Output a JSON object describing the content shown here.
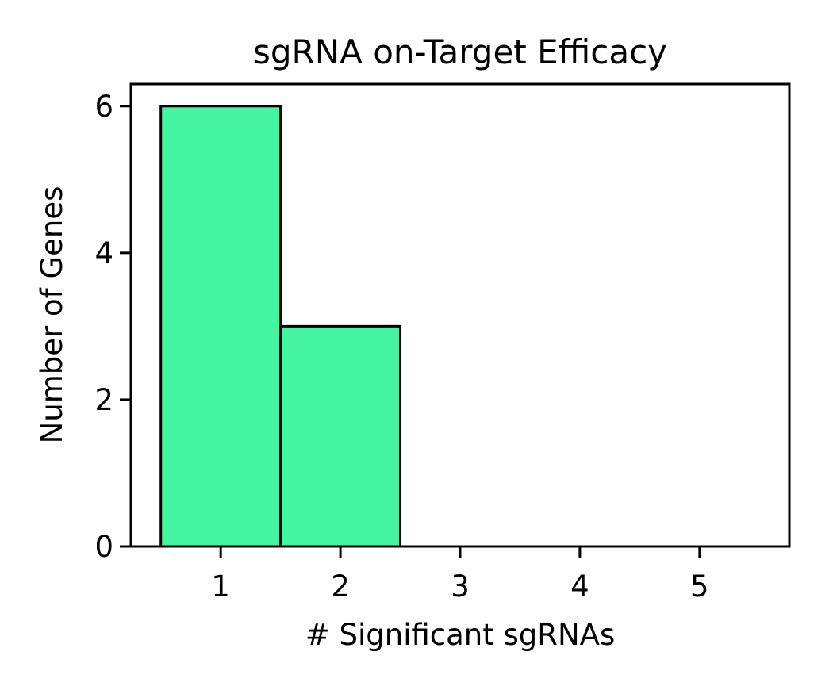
{
  "chart_data": {
    "type": "bar",
    "title": "sgRNA on-Target Efficacy",
    "xlabel": "# Significant sgRNAs",
    "ylabel": "Number of Genes",
    "categories": [
      1,
      2,
      3,
      4,
      5
    ],
    "values": [
      6,
      3,
      0,
      0,
      0
    ],
    "bar_width": 1,
    "xlim": [
      0.25,
      5.75
    ],
    "ylim": [
      0,
      6.3
    ],
    "xticks": [
      1,
      2,
      3,
      4,
      5
    ],
    "yticks": [
      0,
      2,
      4,
      6
    ],
    "bar_color": "#44f4a0",
    "edge_color": "#000000",
    "grid": false
  }
}
